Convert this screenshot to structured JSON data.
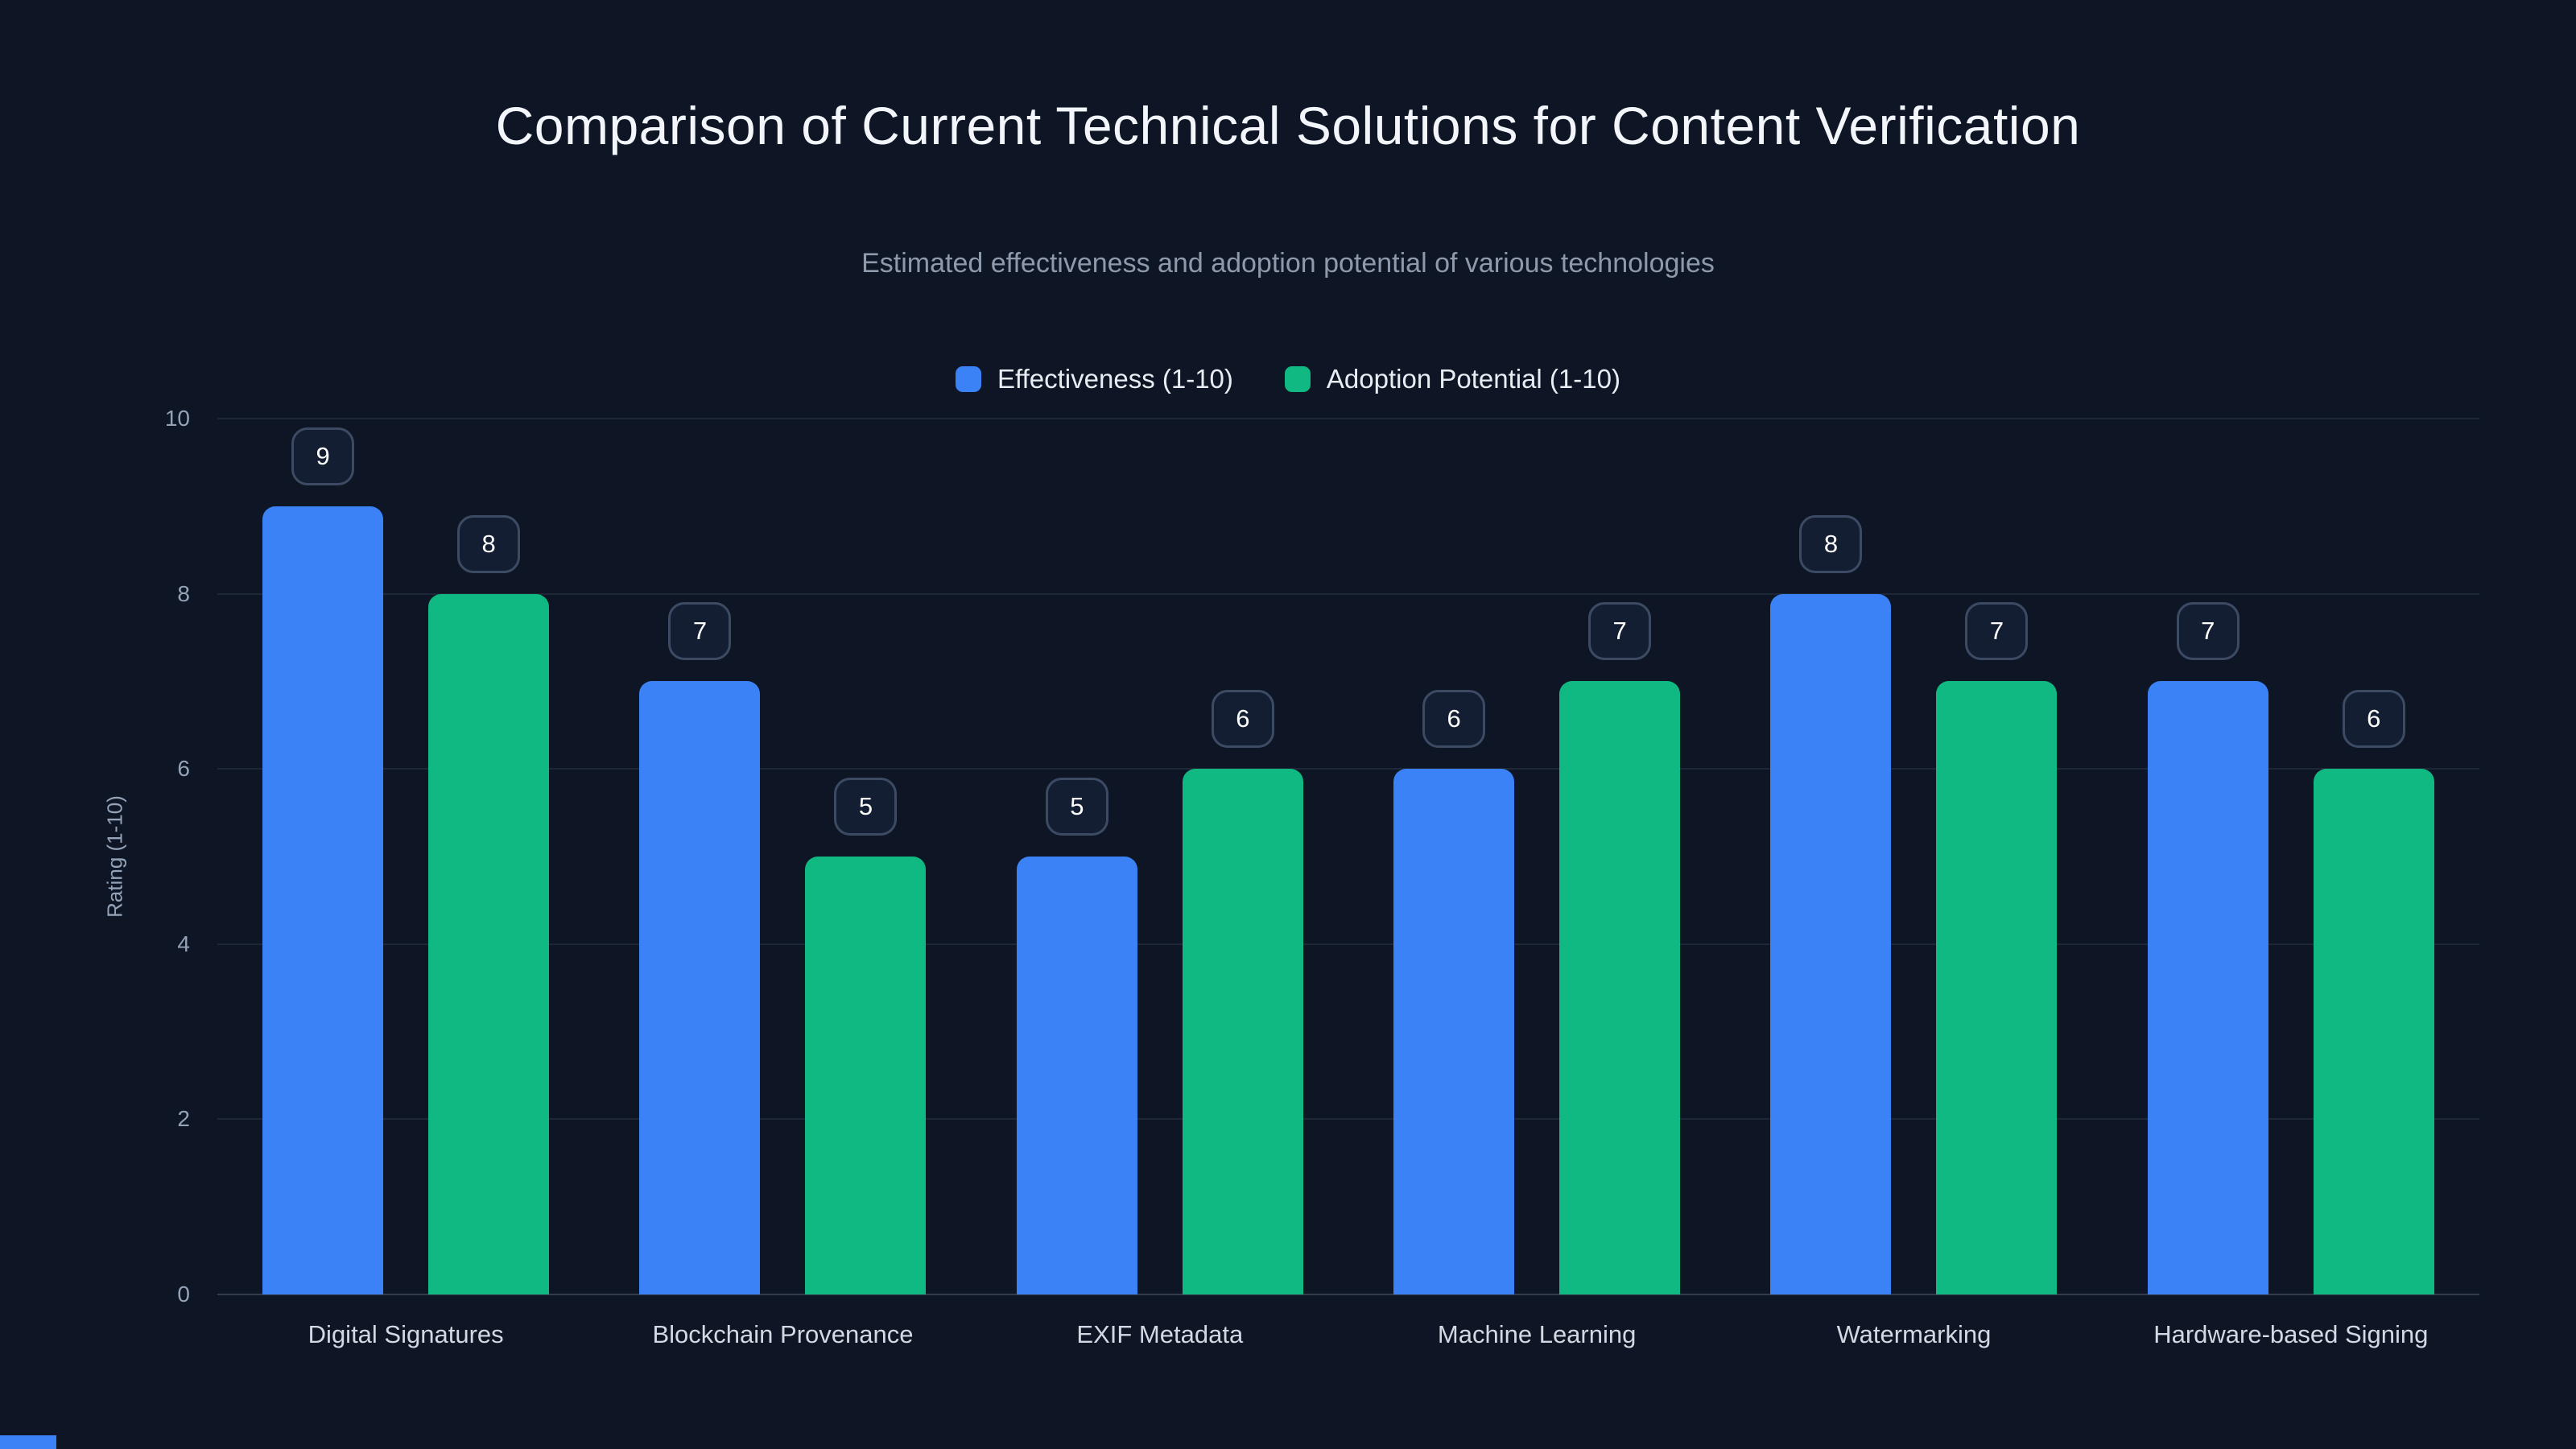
{
  "chart_data": {
    "type": "bar",
    "title": "Comparison of Current Technical Solutions for Content Verification",
    "subtitle": "Estimated effectiveness and adoption potential of various technologies",
    "categories": [
      "Digital Signatures",
      "Blockchain Provenance",
      "EXIF Metadata",
      "Machine Learning",
      "Watermarking",
      "Hardware-based Signing"
    ],
    "series": [
      {
        "name": "Effectiveness (1-10)",
        "color": "#3b82f6",
        "values": [
          9,
          7,
          5,
          6,
          8,
          7
        ]
      },
      {
        "name": "Adoption Potential (1-10)",
        "color": "#10b981",
        "values": [
          8,
          5,
          6,
          7,
          7,
          6
        ]
      }
    ],
    "ylabel": "Rating (1-10)",
    "ylim": [
      0,
      10
    ],
    "yticks": [
      0,
      2,
      4,
      6,
      8,
      10
    ],
    "grid": true,
    "legend_position": "top",
    "data_labels": true
  },
  "colors": {
    "background": "#0e1626",
    "grid": "rgba(148,163,184,0.12)",
    "title_text": "#f2f5fa",
    "subtitle_text": "#8e9aab",
    "tick_text": "#94a3b8",
    "category_text": "#d2d9e3",
    "badge_background": "#131e33",
    "badge_border": "#3c4b63",
    "badge_text": "#ffffff",
    "series_blue": "#3b82f6",
    "series_green": "#10b981"
  }
}
